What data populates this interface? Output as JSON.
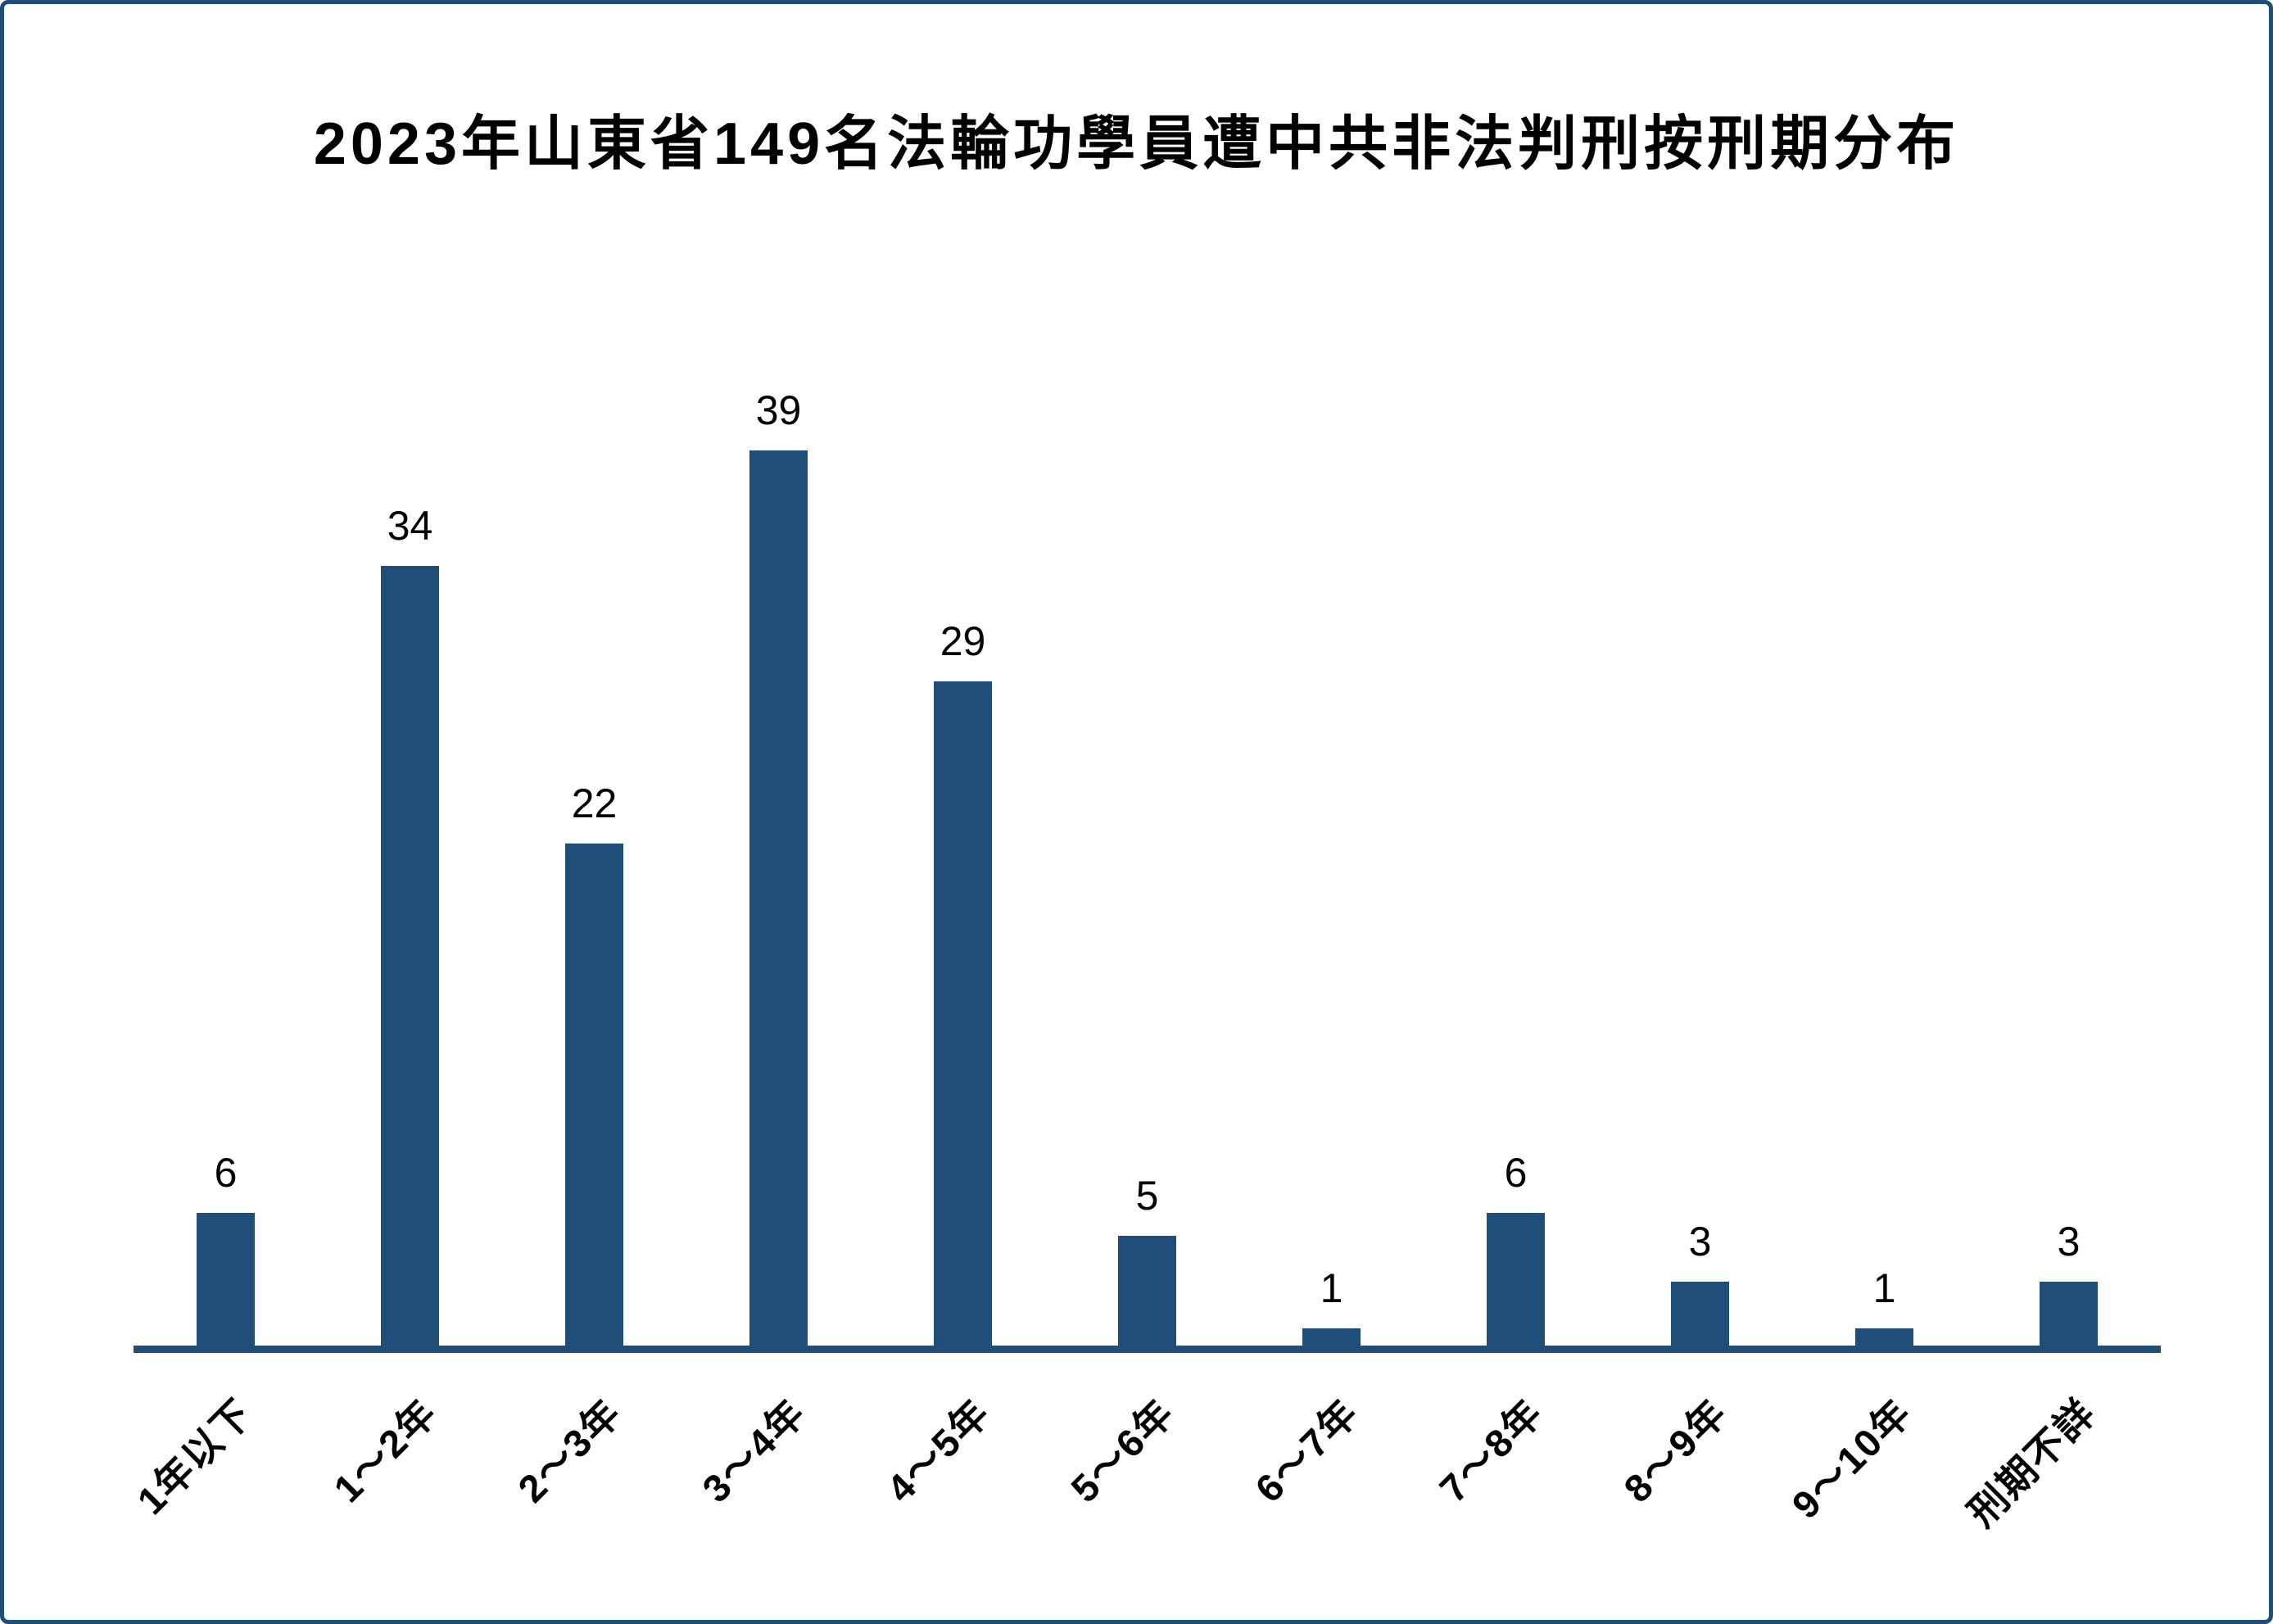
{
  "accent_color": "#1F4E79",
  "background_color": "#FFFFFF",
  "frame": {
    "border_color": "#1F4E79"
  },
  "chart_data": {
    "type": "bar",
    "title": "2023年山東省149名法輪功學員遭中共非法判刑按刑期分布",
    "categories": [
      "1年以下",
      "1～2年",
      "2～3年",
      "3～4年",
      "4～5年",
      "5～6年",
      "6～7年",
      "7～8年",
      "8～9年",
      "9～10年",
      "刑期不詳"
    ],
    "values": [
      6,
      34,
      22,
      39,
      29,
      5,
      1,
      6,
      3,
      1,
      3
    ],
    "bar_color": "#1F4E79",
    "axis_line_color": "#1F4E79",
    "value_label_color": "#000000",
    "tick_label_color": "#000000",
    "title_color": "#000000",
    "xlabel": "",
    "ylabel": "",
    "ylim": [
      0,
      39
    ],
    "grid": false,
    "legend": false,
    "y_axis_visible": false,
    "value_labels_shown": true,
    "tick_label_rotation_deg": 45
  }
}
